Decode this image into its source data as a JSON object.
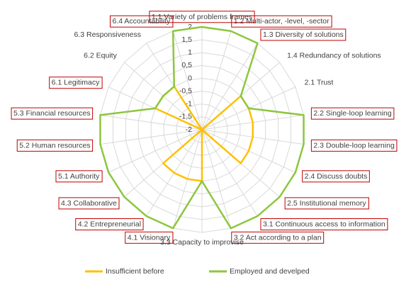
{
  "chart_data": {
    "type": "radar",
    "categories": [
      "1.1 Variety of problems frames",
      "1.2 Multi-actor, -level, -sector",
      "1.3 Diversity of solutions",
      "1.4 Redundancy of solutions",
      "2.1 Trust",
      "2.2 Single-loop learning",
      "2.3 Double-loop learning",
      "2.4 Discuss doubts",
      "2.5 Institutional memory",
      "3.1 Continuous access to information",
      "3.2 Act according to a plan",
      "3.3 Capacity to improvise",
      "4.1 Visionary",
      "4.2 Entrepreneurial",
      "4.3 Collaborative",
      "5.1 Authority",
      "5.2 Human resources",
      "5.3 Financial resources",
      "6.1 Legitimacy",
      "6.2 Equity",
      "6.3 Responsiveness",
      "6.4 Accountability"
    ],
    "label_boxes": [
      true,
      true,
      true,
      false,
      false,
      true,
      true,
      true,
      true,
      true,
      true,
      false,
      true,
      true,
      true,
      true,
      true,
      true,
      true,
      false,
      false,
      true
    ],
    "label_box_color": "#c00000",
    "series": [
      {
        "name": "Insufficient before",
        "color": "#ffc000",
        "values": [
          -2,
          -2,
          -2,
          0,
          0,
          0,
          0,
          0,
          0,
          -2,
          -2,
          0,
          0,
          0,
          0,
          -2,
          -2,
          -2,
          0,
          0,
          0,
          -2
        ]
      },
      {
        "name": "Employed and develped",
        "color": "#8dc63f",
        "values": [
          2,
          2,
          2,
          0,
          0,
          2,
          2,
          2,
          2,
          2,
          2,
          0,
          2,
          2,
          2,
          2,
          2,
          2,
          0,
          0,
          0,
          2
        ]
      }
    ],
    "rlim": [
      -2,
      2
    ],
    "rticks": [
      -2,
      {
        "value": -1.5,
        "label": "-1,5"
      },
      -1,
      {
        "value": -0.5,
        "label": "-0,5"
      },
      0,
      {
        "value": 0.5,
        "label": "0,5"
      },
      1,
      {
        "value": 1.5,
        "label": "1,5"
      },
      2
    ],
    "grid": true,
    "legend": "bottom"
  }
}
